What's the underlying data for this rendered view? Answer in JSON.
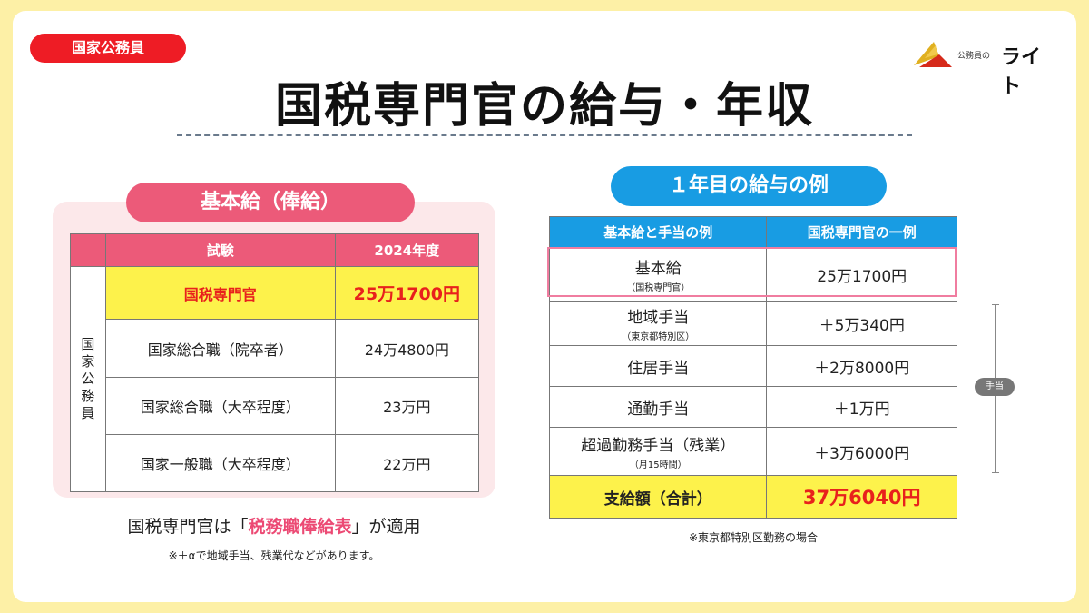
{
  "category_badge": "国家公務員",
  "logo": {
    "small": "公務員の",
    "big": "ライト"
  },
  "title": "国税専門官の給与・年収",
  "left": {
    "heading": "基本給（俸給）",
    "table": {
      "headers": [
        "試験",
        "2024年度"
      ],
      "side_label": "国家公務員",
      "rows": [
        {
          "name": "国税専門官",
          "value": "25万1700円",
          "highlight": true
        },
        {
          "name": "国家総合職（院卒者）",
          "value": "24万4800円"
        },
        {
          "name": "国家総合職（大卒程度）",
          "value": "23万円"
        },
        {
          "name": "国家一般職（大卒程度）",
          "value": "22万円"
        }
      ]
    },
    "note_prefix": "国税専門官は「",
    "note_emphasis": "税務職俸給表",
    "note_suffix": "」が適用",
    "note_small": "※＋αで地域手当、残業代などがあります。"
  },
  "right": {
    "heading": "１年目の給与の例",
    "table": {
      "headers": [
        "基本給と手当の例",
        "国税専門官の一例"
      ],
      "rows": [
        {
          "item": "基本給",
          "sub": "（国税専門官）",
          "amount": "25万1700円"
        },
        {
          "item": "地域手当",
          "sub": "（東京都特別区）",
          "amount": "＋5万340円"
        },
        {
          "item": "住居手当",
          "sub": "",
          "amount": "＋2万8000円"
        },
        {
          "item": "通勤手当",
          "sub": "",
          "amount": "＋1万円"
        },
        {
          "item": "超過勤務手当（残業）",
          "sub": "（月15時間）",
          "amount": "＋3万6000円"
        }
      ],
      "total": {
        "item": "支給額（合計）",
        "amount": "37万6040円"
      }
    },
    "bracket_label": "手当",
    "note": "※東京都特別区勤務の場合"
  },
  "colors": {
    "background": "#fdf0a6",
    "badge_red": "#ee1c25",
    "pink": "#ec5a79",
    "blue": "#189ce3",
    "highlight_yellow": "#fdf24b",
    "highlight_text_red": "#e8211c"
  }
}
